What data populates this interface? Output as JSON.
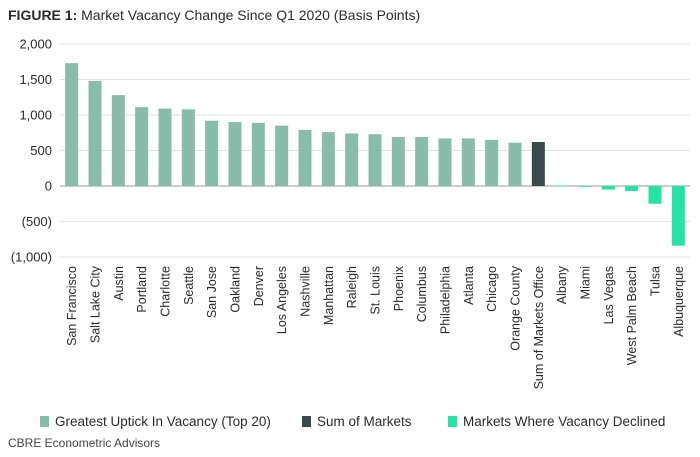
{
  "figure": {
    "title_label": "FIGURE 1:",
    "title_text": "Market Vacancy Change Since Q1 2020 (Basis Points)",
    "source": "CBRE Econometric Advisors"
  },
  "colors": {
    "uptick": "#88bcab",
    "sum": "#3a4a4a",
    "declined": "#25e3a5",
    "grid": "#e3e3e3"
  },
  "legend": {
    "items": [
      {
        "label": "Greatest Uptick In Vacancy (Top 20)",
        "color": "#88bcab"
      },
      {
        "label": "Sum of Markets",
        "color": "#3a4a4a"
      },
      {
        "label": "Markets Where Vacancy Declined",
        "color": "#25e3a5"
      }
    ]
  },
  "chart_data": {
    "type": "bar",
    "title": "Market Vacancy Change Since Q1 2020 (Basis Points)",
    "ylim": [
      -1000,
      2000
    ],
    "yticks": [
      2000,
      1500,
      1000,
      500,
      0,
      -500,
      -1000
    ],
    "ytick_labels": [
      "2,000",
      "1,500",
      "1,000",
      "500",
      "0",
      "(500)",
      "(1,000)"
    ],
    "grid": true,
    "legend_position": "bottom",
    "categories": [
      "San Francisco",
      "Salt Lake City",
      "Austin",
      "Portland",
      "Charlotte",
      "Seattle",
      "San Jose",
      "Oakland",
      "Denver",
      "Los Angeles",
      "Nashville",
      "Manhattan",
      "Raleigh",
      "St. Louis",
      "Phoenix",
      "Columbus",
      "Philadelphia",
      "Atlanta",
      "Chicago",
      "Orange County",
      "Sum of Markets Office",
      "Albany",
      "Miami",
      "Las Vegas",
      "West Palm Beach",
      "Tulsa",
      "Albuquerque"
    ],
    "values": [
      1730,
      1480,
      1280,
      1110,
      1090,
      1080,
      920,
      900,
      890,
      850,
      790,
      760,
      740,
      730,
      690,
      690,
      670,
      670,
      650,
      610,
      620,
      5,
      -10,
      -50,
      -70,
      -250,
      -840
    ],
    "groups": [
      "uptick",
      "uptick",
      "uptick",
      "uptick",
      "uptick",
      "uptick",
      "uptick",
      "uptick",
      "uptick",
      "uptick",
      "uptick",
      "uptick",
      "uptick",
      "uptick",
      "uptick",
      "uptick",
      "uptick",
      "uptick",
      "uptick",
      "uptick",
      "sum",
      "declined",
      "declined",
      "declined",
      "declined",
      "declined",
      "declined"
    ]
  }
}
